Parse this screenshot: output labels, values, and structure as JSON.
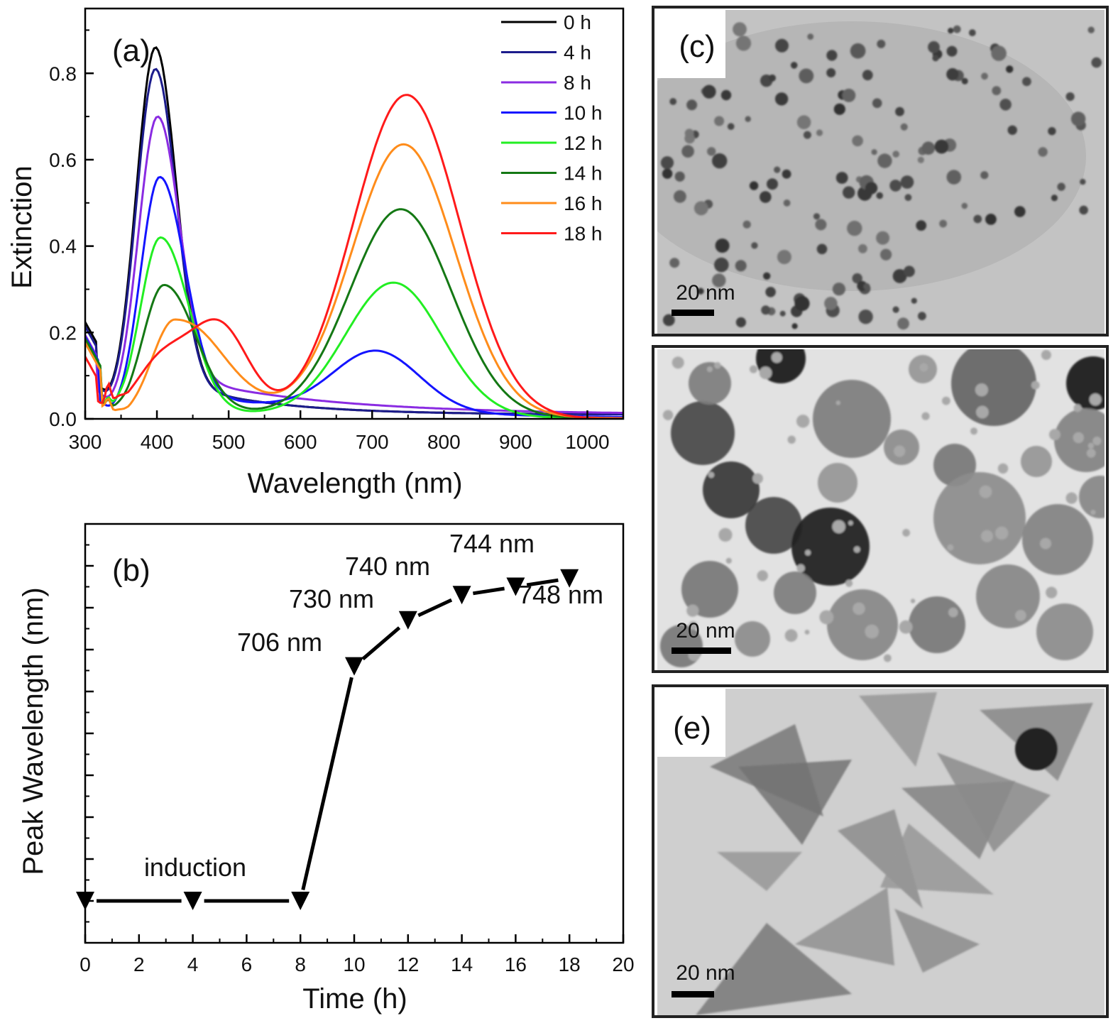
{
  "chart_data": [
    {
      "type": "line",
      "panel_label": "(a)",
      "xlabel": "Wavelength (nm)",
      "ylabel": "Extinction",
      "xlim": [
        300,
        1050
      ],
      "ylim": [
        0.0,
        0.95
      ],
      "xticks": [
        300,
        400,
        500,
        600,
        700,
        800,
        900,
        1000
      ],
      "xtick_labels": [
        "300",
        "400",
        "500",
        "600",
        "700",
        "800",
        "900",
        "1000"
      ],
      "yticks": [
        0.0,
        0.2,
        0.4,
        0.6,
        0.8
      ],
      "ytick_labels": [
        "0.0",
        "0.2",
        "0.4",
        "0.6",
        "0.8"
      ],
      "legend_position": "top-right",
      "series": [
        {
          "name": "0 h",
          "color": "#000000",
          "params": {
            "dip": 0.17,
            "dipW": 318,
            "spike": 0.0,
            "peak": 0.85,
            "peakW": 398,
            "sL": 38,
            "sR": 40,
            "tail": 0.09,
            "tailD": 130,
            "base": 0.01,
            "shP": 0.0,
            "shW": 480,
            "shS": 40,
            "lspr": 0.0,
            "lsprW": 706,
            "lsprS": 100
          }
        },
        {
          "name": "4 h",
          "color": "#1c1c8c",
          "params": {
            "dip": 0.16,
            "dipW": 318,
            "spike": 0.0,
            "peak": 0.8,
            "peakW": 398,
            "sL": 38,
            "sR": 40,
            "tail": 0.09,
            "tailD": 130,
            "base": 0.01,
            "shP": 0.0,
            "shW": 480,
            "shS": 40,
            "lspr": 0.0,
            "lsprW": 706,
            "lsprS": 100
          }
        },
        {
          "name": "8 h",
          "color": "#8a2be2",
          "params": {
            "dip": 0.14,
            "dipW": 318,
            "spike": 0.0,
            "peak": 0.69,
            "peakW": 401,
            "sL": 38,
            "sR": 42,
            "tail": 0.1,
            "tailD": 200,
            "base": 0.01,
            "shP": 0.0,
            "shW": 480,
            "shS": 40,
            "lspr": 0.0,
            "lsprW": 706,
            "lsprS": 100
          }
        },
        {
          "name": "10 h",
          "color": "#1414ff",
          "params": {
            "dip": 0.13,
            "dipW": 320,
            "spike": 0.0,
            "peak": 0.56,
            "peakW": 404,
            "sL": 38,
            "sR": 48,
            "tail": 0.06,
            "tailD": 250,
            "base": 0.0,
            "shP": 0.0,
            "shW": 480,
            "shS": 40,
            "lspr": 0.14,
            "lsprW": 706,
            "lsprS": 85
          }
        },
        {
          "name": "12 h",
          "color": "#22ee22",
          "params": {
            "dip": 0.12,
            "dipW": 322,
            "spike": 0.02,
            "peak": 0.42,
            "peakW": 405,
            "sL": 40,
            "sR": 55,
            "tail": 0.02,
            "tailD": 250,
            "base": 0.0,
            "shP": 0.0,
            "shW": 480,
            "shS": 40,
            "lspr": 0.31,
            "lsprW": 730,
            "lsprS": 95
          }
        },
        {
          "name": "14 h",
          "color": "#147814",
          "params": {
            "dip": 0.12,
            "dipW": 322,
            "spike": 0.02,
            "peak": 0.31,
            "peakW": 410,
            "sL": 42,
            "sR": 60,
            "tail": 0.02,
            "tailD": 250,
            "base": 0.0,
            "shP": 0.0,
            "shW": 480,
            "shS": 40,
            "lspr": 0.48,
            "lsprW": 740,
            "lsprS": 100
          }
        },
        {
          "name": "16 h",
          "color": "#ff8c1a",
          "params": {
            "dip": 0.11,
            "dipW": 322,
            "spike": 0.03,
            "peak": 0.23,
            "peakW": 425,
            "sL": 45,
            "sR": 90,
            "tail": 0.02,
            "tailD": 250,
            "base": 0.0,
            "shP": 0.0,
            "shW": 480,
            "shS": 40,
            "lspr": 0.63,
            "lsprW": 744,
            "lsprS": 102
          }
        },
        {
          "name": "18 h",
          "color": "#ff1a1a",
          "params": {
            "dip": 0.09,
            "dipW": 318,
            "spike": 0.05,
            "peak": 0.14,
            "peakW": 410,
            "sL": 55,
            "sR": 60,
            "tail": 0.0,
            "tailD": 250,
            "base": 0.0,
            "shP": 0.2,
            "shW": 490,
            "shS": 55,
            "lspr": 0.75,
            "lsprW": 748,
            "lsprS": 105
          }
        }
      ]
    },
    {
      "type": "line",
      "panel_label": "(b)",
      "xlabel": "Time (h)",
      "ylabel": "Peak Wavelength (nm)",
      "xlim": [
        0,
        20
      ],
      "ylim": [
        0,
        1
      ],
      "xticks": [
        0,
        2,
        4,
        6,
        8,
        10,
        12,
        14,
        16,
        18,
        20
      ],
      "xtick_labels": [
        "0",
        "2",
        "4",
        "6",
        "8",
        "10",
        "12",
        "14",
        "16",
        "18",
        "20"
      ],
      "series": [
        {
          "name": "Peak wavelength",
          "color": "#000000",
          "marker": "down-triangle",
          "x": [
            0,
            4,
            8,
            10,
            12,
            14,
            16,
            18
          ],
          "y": [
            0.1,
            0.1,
            0.1,
            0.66,
            0.77,
            0.83,
            0.85,
            0.87
          ]
        }
      ],
      "annotations": [
        {
          "text": "induction"
        },
        {
          "text": "706 nm"
        },
        {
          "text": "730 nm"
        },
        {
          "text": "740 nm"
        },
        {
          "text": "744 nm"
        },
        {
          "text": "748 nm"
        }
      ]
    }
  ],
  "tem_panels": [
    {
      "label": "(c)",
      "scale_bar": "20 nm"
    },
    {
      "label": "",
      "scale_bar": "20 nm"
    },
    {
      "label": "(e)",
      "scale_bar": "20 nm"
    }
  ]
}
